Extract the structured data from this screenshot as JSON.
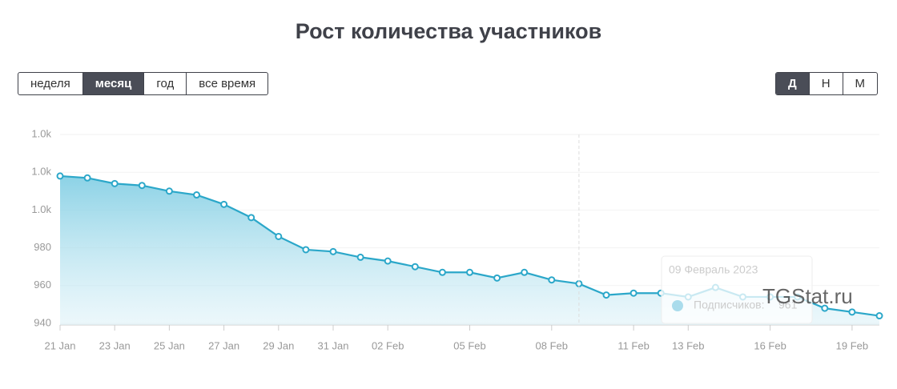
{
  "header": {
    "title": "Рост количества участников"
  },
  "controls": {
    "periods": [
      "неделя",
      "месяц",
      "год",
      "все время"
    ],
    "scales": [
      "Д",
      "Н",
      "М"
    ]
  },
  "watermark": "TGStat.ru",
  "chart_data": {
    "type": "area",
    "categories": [
      "21 Jan",
      null,
      "23 Jan",
      null,
      "25 Jan",
      null,
      "27 Jan",
      null,
      "29 Jan",
      null,
      "31 Jan",
      null,
      "02 Feb",
      null,
      null,
      "05 Feb",
      null,
      null,
      "08 Feb",
      null,
      null,
      "11 Feb",
      null,
      "13 Feb",
      null,
      null,
      "16 Feb",
      null,
      null,
      "19 Feb",
      null
    ],
    "series": [
      {
        "name": "Подписчиков",
        "color": "#2ba7c9",
        "values": [
          1018,
          1017,
          1014,
          1013,
          1010,
          1008,
          1003,
          996,
          986,
          979,
          978,
          975,
          973,
          970,
          967,
          967,
          964,
          967,
          963,
          961,
          955,
          956,
          956,
          954,
          959,
          954,
          954,
          954,
          948,
          946,
          944
        ]
      }
    ],
    "ylim": [
      940,
      1040
    ],
    "yticks": [
      940,
      960,
      980,
      {
        "value": 1000,
        "label": "1.0k"
      },
      {
        "value": 1020,
        "label": "1.0k"
      },
      {
        "value": 1040,
        "label": "1.0k"
      }
    ],
    "grid": true,
    "tooltip": {
      "title": "09 Февраль 2023",
      "label": "Подписчиков:"
    }
  }
}
